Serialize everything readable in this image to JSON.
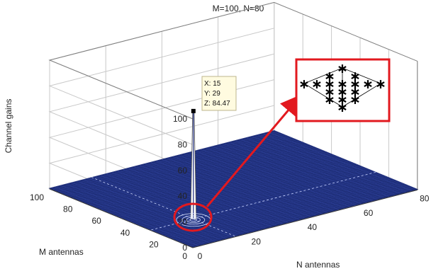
{
  "chart_data": {
    "type": "surface",
    "title": "M=100, N=80",
    "xlabel": "N antennas",
    "ylabel": "M antennas",
    "zlabel": "Channel gains",
    "xlim": [
      0,
      80
    ],
    "ylim": [
      0,
      100
    ],
    "zlim": [
      0,
      100
    ],
    "x_ticks": [
      "0",
      "20",
      "40",
      "60",
      "80"
    ],
    "y_ticks": [
      "0",
      "20",
      "40",
      "60",
      "80",
      "100"
    ],
    "z_ticks": [
      "0",
      "20",
      "40",
      "60",
      "80",
      "100"
    ],
    "grid": true,
    "surface_color": "#1f2f7a",
    "peak": {
      "x": 15,
      "y": 29,
      "z": 84.47
    },
    "datatip": {
      "x_text": "X: 15",
      "y_text": "Y: 29",
      "z_text": "Z: 84.47"
    },
    "highlight_color": "#e2191f",
    "inset_pattern": [
      [
        0,
        3
      ],
      [
        -1,
        2
      ],
      [
        1,
        2
      ],
      [
        -3,
        1
      ],
      [
        -2,
        1
      ],
      [
        -1,
        1
      ],
      [
        0,
        1
      ],
      [
        1,
        1
      ],
      [
        2,
        1
      ],
      [
        3,
        1
      ],
      [
        -1,
        0
      ],
      [
        0,
        0
      ],
      [
        1,
        0
      ],
      [
        -1,
        -1
      ],
      [
        0,
        -1
      ],
      [
        1,
        -1
      ],
      [
        0,
        -2
      ]
    ]
  }
}
